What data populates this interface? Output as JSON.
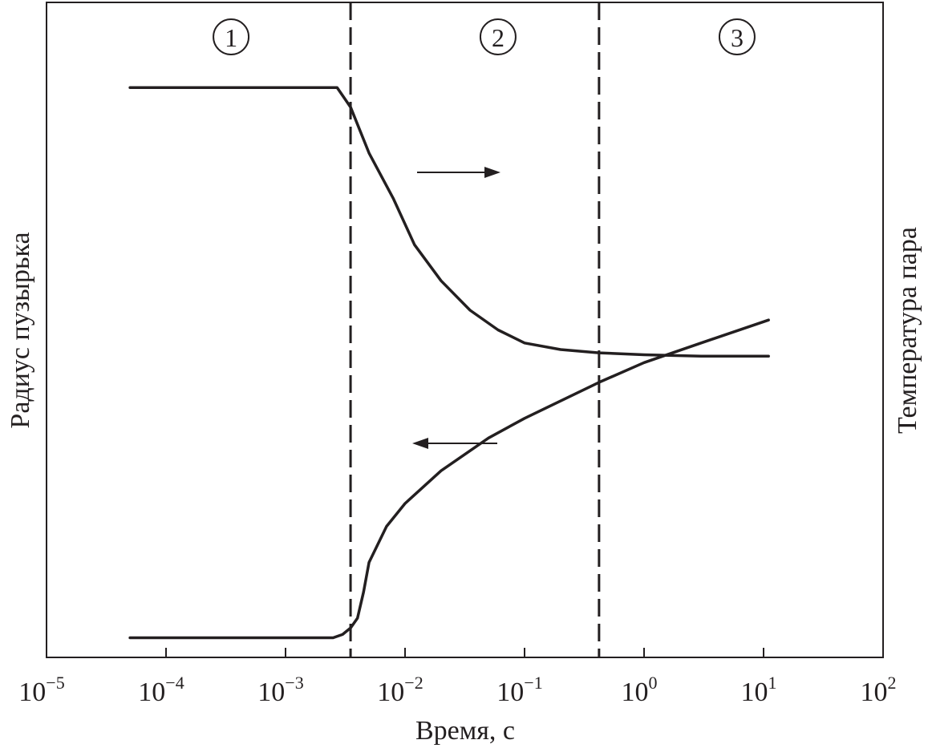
{
  "chart_data": {
    "type": "line",
    "title": "",
    "xlabel": "Время, с",
    "ylabel_left": "Радиус пузырька",
    "ylabel_right": "Температура пара",
    "x_scale": "log",
    "xlim": [
      1e-05,
      100
    ],
    "x_ticks": [
      {
        "value": 1e-05,
        "base": "10",
        "exp": "−5"
      },
      {
        "value": 0.0001,
        "base": "10",
        "exp": "−4"
      },
      {
        "value": 0.001,
        "base": "10",
        "exp": "−3"
      },
      {
        "value": 0.01,
        "base": "10",
        "exp": "−2"
      },
      {
        "value": 0.1,
        "base": "10",
        "exp": "−1"
      },
      {
        "value": 1,
        "base": "10",
        "exp": "0"
      },
      {
        "value": 10,
        "base": "10",
        "exp": "1"
      },
      {
        "value": 100,
        "base": "10",
        "exp": "2"
      }
    ],
    "y_ticks_shown": false,
    "grid": false,
    "region_boundaries": [
      0.0035,
      0.42
    ],
    "regions": [
      {
        "label": "1",
        "x": 0.00035
      },
      {
        "label": "2",
        "x": 0.06
      },
      {
        "label": "3",
        "x": 6
      }
    ],
    "series": [
      {
        "axis": "right",
        "arrow": "right",
        "points": [
          [
            5e-05,
            0.87
          ],
          [
            0.0027,
            0.87
          ],
          [
            0.0035,
            0.84
          ],
          [
            0.005,
            0.77
          ],
          [
            0.008,
            0.7
          ],
          [
            0.012,
            0.63
          ],
          [
            0.02,
            0.575
          ],
          [
            0.035,
            0.53
          ],
          [
            0.06,
            0.5
          ],
          [
            0.1,
            0.48
          ],
          [
            0.2,
            0.47
          ],
          [
            0.42,
            0.465
          ],
          [
            1,
            0.462
          ],
          [
            3,
            0.46
          ],
          [
            11,
            0.46
          ]
        ]
      },
      {
        "axis": "left",
        "arrow": "left",
        "points": [
          [
            5e-05,
            0.03
          ],
          [
            0.0025,
            0.03
          ],
          [
            0.003,
            0.035
          ],
          [
            0.0035,
            0.045
          ],
          [
            0.004,
            0.06
          ],
          [
            0.0045,
            0.1
          ],
          [
            0.005,
            0.145
          ],
          [
            0.007,
            0.2
          ],
          [
            0.01,
            0.235
          ],
          [
            0.02,
            0.285
          ],
          [
            0.05,
            0.335
          ],
          [
            0.1,
            0.365
          ],
          [
            0.42,
            0.42
          ],
          [
            1,
            0.45
          ],
          [
            3,
            0.48
          ],
          [
            11,
            0.515
          ]
        ]
      }
    ]
  }
}
